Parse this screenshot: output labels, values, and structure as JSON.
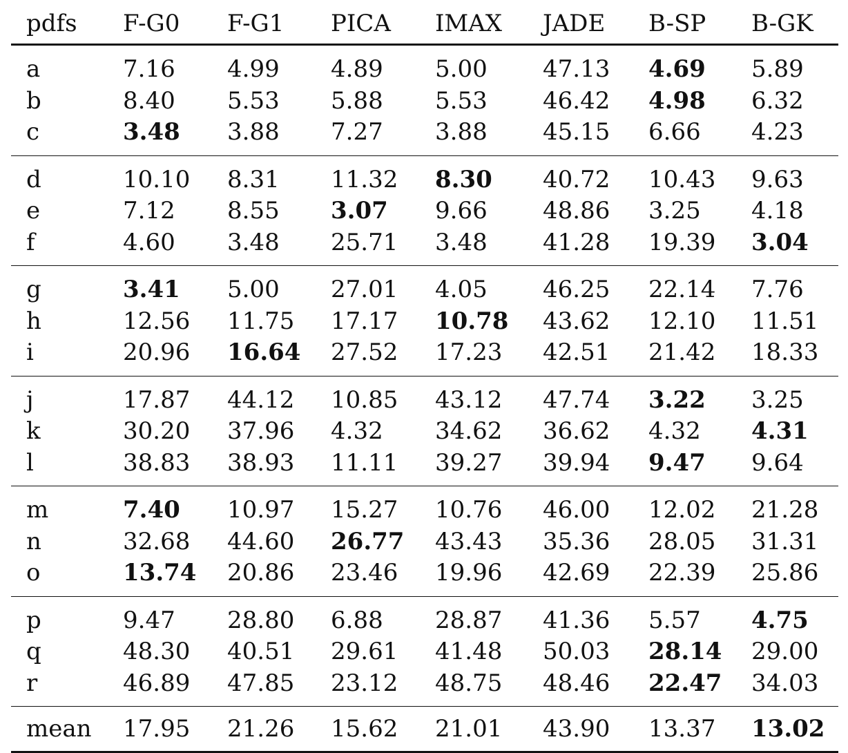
{
  "table": {
    "headers": [
      "pdfs",
      "F-G0",
      "F-G1",
      "PICA",
      "IMAX",
      "JADE",
      "B-SP",
      "B-GK"
    ],
    "groups": [
      [
        {
          "label": "a",
          "values": [
            "7.16",
            "4.99",
            "4.89",
            "5.00",
            "47.13",
            "4.69",
            "5.89"
          ],
          "best": 5
        },
        {
          "label": "b",
          "values": [
            "8.40",
            "5.53",
            "5.88",
            "5.53",
            "46.42",
            "4.98",
            "6.32"
          ],
          "best": 5
        },
        {
          "label": "c",
          "values": [
            "3.48",
            "3.88",
            "7.27",
            "3.88",
            "45.15",
            "6.66",
            "4.23"
          ],
          "best": 0
        }
      ],
      [
        {
          "label": "d",
          "values": [
            "10.10",
            "8.31",
            "11.32",
            "8.30",
            "40.72",
            "10.43",
            "9.63"
          ],
          "best": 3
        },
        {
          "label": "e",
          "values": [
            "7.12",
            "8.55",
            "3.07",
            "9.66",
            "48.86",
            "3.25",
            "4.18"
          ],
          "best": 2
        },
        {
          "label": "f",
          "values": [
            "4.60",
            "3.48",
            "25.71",
            "3.48",
            "41.28",
            "19.39",
            "3.04"
          ],
          "best": 6
        }
      ],
      [
        {
          "label": "g",
          "values": [
            "3.41",
            "5.00",
            "27.01",
            "4.05",
            "46.25",
            "22.14",
            "7.76"
          ],
          "best": 0
        },
        {
          "label": "h",
          "values": [
            "12.56",
            "11.75",
            "17.17",
            "10.78",
            "43.62",
            "12.10",
            "11.51"
          ],
          "best": 3
        },
        {
          "label": "i",
          "values": [
            "20.96",
            "16.64",
            "27.52",
            "17.23",
            "42.51",
            "21.42",
            "18.33"
          ],
          "best": 1
        }
      ],
      [
        {
          "label": "j",
          "values": [
            "17.87",
            "44.12",
            "10.85",
            "43.12",
            "47.74",
            "3.22",
            "3.25"
          ],
          "best": 5
        },
        {
          "label": "k",
          "values": [
            "30.20",
            "37.96",
            "4.32",
            "34.62",
            "36.62",
            "4.32",
            "4.31"
          ],
          "best": 6
        },
        {
          "label": "l",
          "values": [
            "38.83",
            "38.93",
            "11.11",
            "39.27",
            "39.94",
            "9.47",
            "9.64"
          ],
          "best": 5
        }
      ],
      [
        {
          "label": "m",
          "values": [
            "7.40",
            "10.97",
            "15.27",
            "10.76",
            "46.00",
            "12.02",
            "21.28"
          ],
          "best": 0
        },
        {
          "label": "n",
          "values": [
            "32.68",
            "44.60",
            "26.77",
            "43.43",
            "35.36",
            "28.05",
            "31.31"
          ],
          "best": 2
        },
        {
          "label": "o",
          "values": [
            "13.74",
            "20.86",
            "23.46",
            "19.96",
            "42.69",
            "22.39",
            "25.86"
          ],
          "best": 0
        }
      ],
      [
        {
          "label": "p",
          "values": [
            "9.47",
            "28.80",
            "6.88",
            "28.87",
            "41.36",
            "5.57",
            "4.75"
          ],
          "best": 6
        },
        {
          "label": "q",
          "values": [
            "48.30",
            "40.51",
            "29.61",
            "41.48",
            "50.03",
            "28.14",
            "29.00"
          ],
          "best": 5
        },
        {
          "label": "r",
          "values": [
            "46.89",
            "47.85",
            "23.12",
            "48.75",
            "48.46",
            "22.47",
            "34.03"
          ],
          "best": 5
        }
      ]
    ],
    "mean": {
      "label": "mean",
      "values": [
        "17.95",
        "21.26",
        "15.62",
        "21.01",
        "43.90",
        "13.37",
        "13.02"
      ],
      "best": 6
    }
  }
}
